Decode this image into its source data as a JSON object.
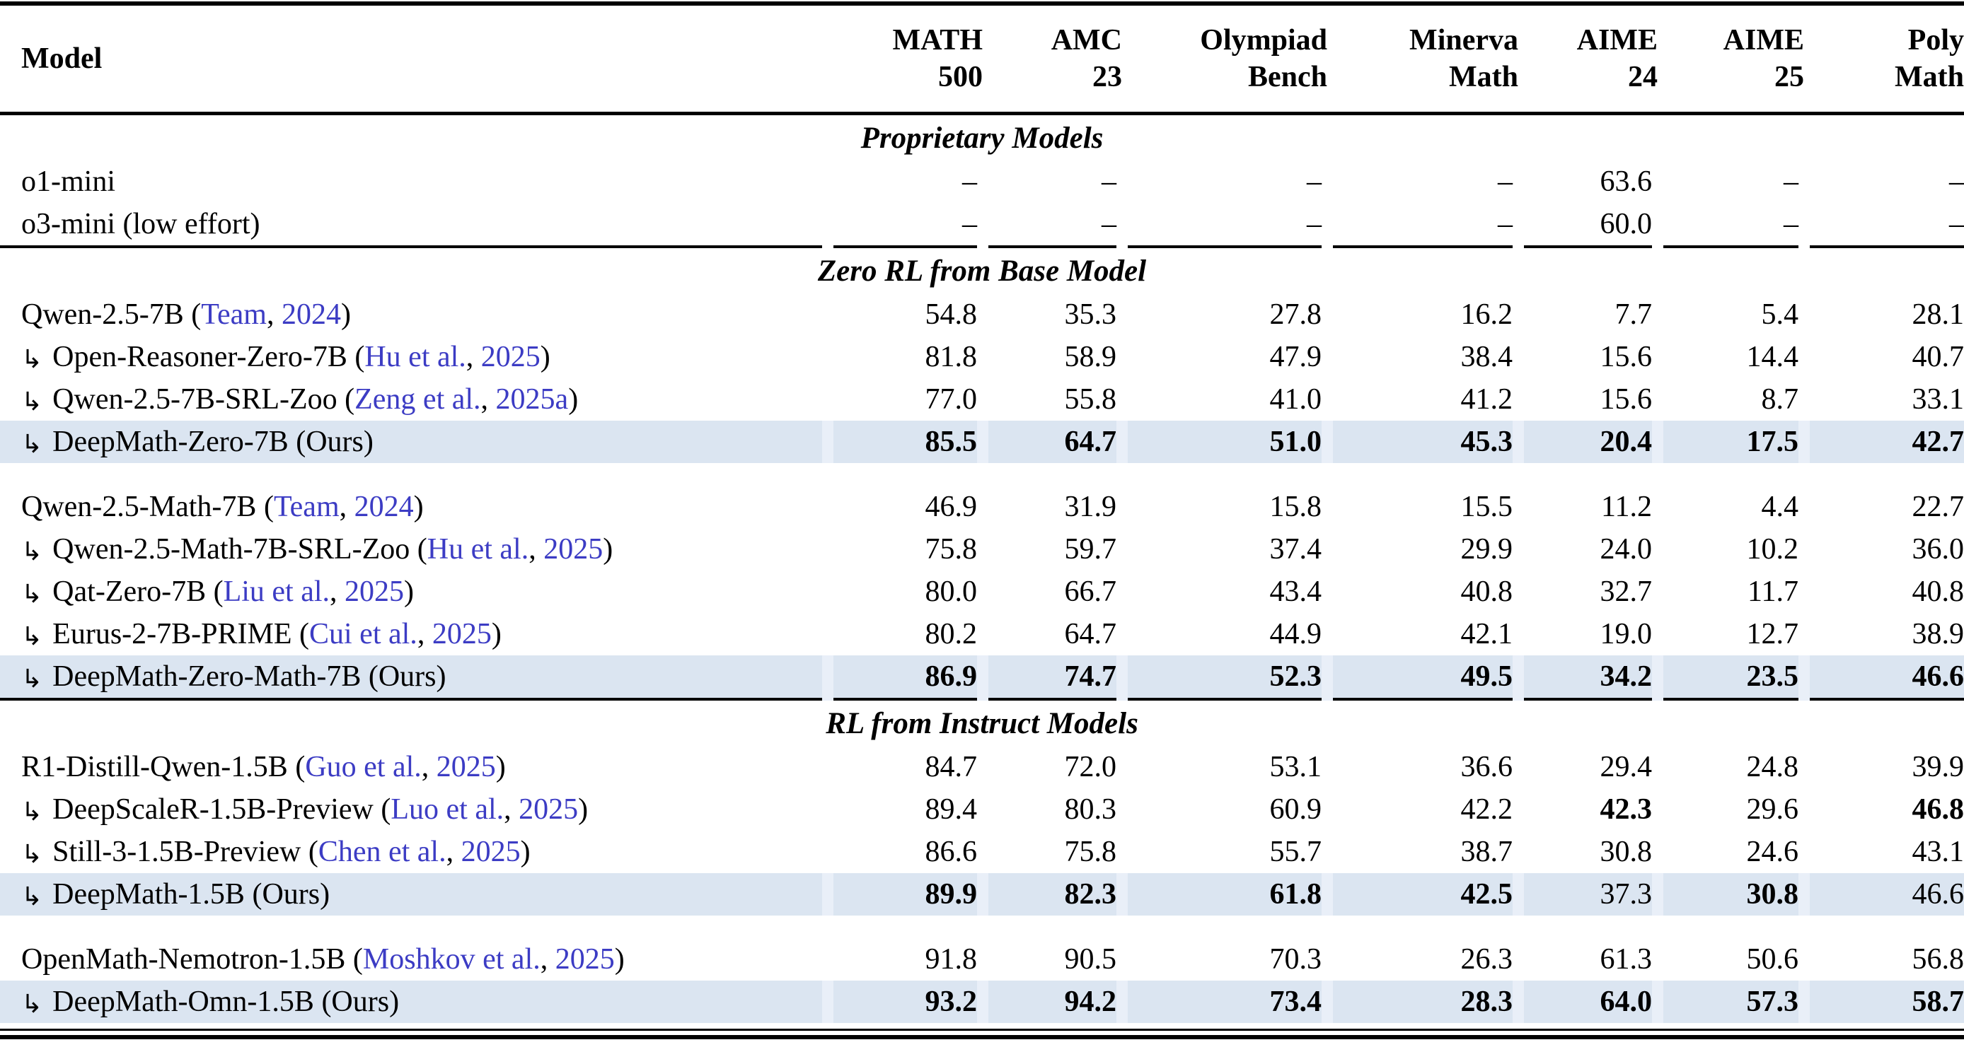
{
  "colors": {
    "link_blue": "#3c3cc4",
    "highlight_row": "#dbe5f1",
    "highlight_gap": "#e9eff8",
    "rule_black": "#000000"
  },
  "table": {
    "model_header": "Model",
    "columns": [
      {
        "id": "math500",
        "line1": "MATH",
        "line2": "500"
      },
      {
        "id": "amc23",
        "line1": "AMC",
        "line2": "23"
      },
      {
        "id": "olympiadbench",
        "line1": "Olympiad",
        "line2": "Bench"
      },
      {
        "id": "minervamath",
        "line1": "Minerva",
        "line2": "Math"
      },
      {
        "id": "aime24",
        "line1": "AIME",
        "line2": "24"
      },
      {
        "id": "aime25",
        "line1": "AIME",
        "line2": "25"
      },
      {
        "id": "polymath",
        "line1": "Poly",
        "line2": "Math"
      }
    ],
    "sections": [
      {
        "header": "Proprietary Models",
        "groups": [
          {
            "rows": [
              {
                "name": "o1-mini",
                "arrow": false,
                "ours": false,
                "values": [
                  "–",
                  "–",
                  "–",
                  "–",
                  "63.6",
                  "–",
                  "–"
                ],
                "bold": [
                  false,
                  false,
                  false,
                  false,
                  false,
                  false,
                  false
                ]
              },
              {
                "name": "o3-mini (low effort)",
                "arrow": false,
                "ours": false,
                "values": [
                  "–",
                  "–",
                  "–",
                  "–",
                  "60.0",
                  "–",
                  "–"
                ],
                "bold": [
                  false,
                  false,
                  false,
                  false,
                  false,
                  false,
                  false
                ]
              }
            ]
          }
        ]
      },
      {
        "header": "Zero RL from Base Model",
        "groups": [
          {
            "rows": [
              {
                "name": "Qwen-2.5-7B",
                "arrow": false,
                "ours": false,
                "cite_author": "Team",
                "cite_year": "2024",
                "values": [
                  "54.8",
                  "35.3",
                  "27.8",
                  "16.2",
                  "7.7",
                  "5.4",
                  "28.1"
                ],
                "bold": [
                  false,
                  false,
                  false,
                  false,
                  false,
                  false,
                  false
                ]
              },
              {
                "name": "Open-Reasoner-Zero-7B",
                "arrow": true,
                "ours": false,
                "cite_author": "Hu et al.",
                "cite_year": "2025",
                "values": [
                  "81.8",
                  "58.9",
                  "47.9",
                  "38.4",
                  "15.6",
                  "14.4",
                  "40.7"
                ],
                "bold": [
                  false,
                  false,
                  false,
                  false,
                  false,
                  false,
                  false
                ]
              },
              {
                "name": "Qwen-2.5-7B-SRL-Zoo",
                "arrow": true,
                "ours": false,
                "cite_author": "Zeng et al.",
                "cite_year": "2025a",
                "values": [
                  "77.0",
                  "55.8",
                  "41.0",
                  "41.2",
                  "15.6",
                  "8.7",
                  "33.1"
                ],
                "bold": [
                  false,
                  false,
                  false,
                  false,
                  false,
                  false,
                  false
                ]
              },
              {
                "name": "DeepMath-Zero-7B",
                "arrow": true,
                "ours": true,
                "suffix": "Ours",
                "values": [
                  "85.5",
                  "64.7",
                  "51.0",
                  "45.3",
                  "20.4",
                  "17.5",
                  "42.7"
                ],
                "bold": [
                  true,
                  true,
                  true,
                  true,
                  true,
                  true,
                  true
                ]
              }
            ]
          },
          {
            "rows": [
              {
                "name": "Qwen-2.5-Math-7B",
                "arrow": false,
                "ours": false,
                "cite_author": "Team",
                "cite_year": "2024",
                "values": [
                  "46.9",
                  "31.9",
                  "15.8",
                  "15.5",
                  "11.2",
                  "4.4",
                  "22.7"
                ],
                "bold": [
                  false,
                  false,
                  false,
                  false,
                  false,
                  false,
                  false
                ]
              },
              {
                "name": "Qwen-2.5-Math-7B-SRL-Zoo",
                "arrow": true,
                "ours": false,
                "cite_author": "Hu et al.",
                "cite_year": "2025",
                "values": [
                  "75.8",
                  "59.7",
                  "37.4",
                  "29.9",
                  "24.0",
                  "10.2",
                  "36.0"
                ],
                "bold": [
                  false,
                  false,
                  false,
                  false,
                  false,
                  false,
                  false
                ]
              },
              {
                "name": "Qat-Zero-7B",
                "arrow": true,
                "ours": false,
                "cite_author": "Liu et al.",
                "cite_year": "2025",
                "values": [
                  "80.0",
                  "66.7",
                  "43.4",
                  "40.8",
                  "32.7",
                  "11.7",
                  "40.8"
                ],
                "bold": [
                  false,
                  false,
                  false,
                  false,
                  false,
                  false,
                  false
                ]
              },
              {
                "name": "Eurus-2-7B-PRIME",
                "arrow": true,
                "ours": false,
                "cite_author": "Cui et al.",
                "cite_year": "2025",
                "values": [
                  "80.2",
                  "64.7",
                  "44.9",
                  "42.1",
                  "19.0",
                  "12.7",
                  "38.9"
                ],
                "bold": [
                  false,
                  false,
                  false,
                  false,
                  false,
                  false,
                  false
                ]
              },
              {
                "name": "DeepMath-Zero-Math-7B",
                "arrow": true,
                "ours": true,
                "suffix": "Ours",
                "values": [
                  "86.9",
                  "74.7",
                  "52.3",
                  "49.5",
                  "34.2",
                  "23.5",
                  "46.6"
                ],
                "bold": [
                  true,
                  true,
                  true,
                  true,
                  true,
                  true,
                  true
                ]
              }
            ]
          }
        ]
      },
      {
        "header": "RL from Instruct Models",
        "groups": [
          {
            "rows": [
              {
                "name": "R1-Distill-Qwen-1.5B",
                "arrow": false,
                "ours": false,
                "cite_author": "Guo et al.",
                "cite_year": "2025",
                "values": [
                  "84.7",
                  "72.0",
                  "53.1",
                  "36.6",
                  "29.4",
                  "24.8",
                  "39.9"
                ],
                "bold": [
                  false,
                  false,
                  false,
                  false,
                  false,
                  false,
                  false
                ]
              },
              {
                "name": "DeepScaleR-1.5B-Preview",
                "arrow": true,
                "ours": false,
                "cite_author": "Luo et al.",
                "cite_year": "2025",
                "values": [
                  "89.4",
                  "80.3",
                  "60.9",
                  "42.2",
                  "42.3",
                  "29.6",
                  "46.8"
                ],
                "bold": [
                  false,
                  false,
                  false,
                  false,
                  true,
                  false,
                  true
                ]
              },
              {
                "name": "Still-3-1.5B-Preview",
                "arrow": true,
                "ours": false,
                "cite_author": "Chen et al.",
                "cite_year": "2025",
                "values": [
                  "86.6",
                  "75.8",
                  "55.7",
                  "38.7",
                  "30.8",
                  "24.6",
                  "43.1"
                ],
                "bold": [
                  false,
                  false,
                  false,
                  false,
                  false,
                  false,
                  false
                ]
              },
              {
                "name": "DeepMath-1.5B",
                "arrow": true,
                "ours": true,
                "suffix": "Ours",
                "values": [
                  "89.9",
                  "82.3",
                  "61.8",
                  "42.5",
                  "37.3",
                  "30.8",
                  "46.6"
                ],
                "bold": [
                  true,
                  true,
                  true,
                  true,
                  false,
                  true,
                  false
                ]
              }
            ]
          },
          {
            "rows": [
              {
                "name": "OpenMath-Nemotron-1.5B",
                "arrow": false,
                "ours": false,
                "cite_author": "Moshkov et al.",
                "cite_year": "2025",
                "values": [
                  "91.8",
                  "90.5",
                  "70.3",
                  "26.3",
                  "61.3",
                  "50.6",
                  "56.8"
                ],
                "bold": [
                  false,
                  false,
                  false,
                  false,
                  false,
                  false,
                  false
                ]
              },
              {
                "name": "DeepMath-Omn-1.5B",
                "arrow": true,
                "ours": true,
                "suffix": "Ours",
                "values": [
                  "93.2",
                  "94.2",
                  "73.4",
                  "28.3",
                  "64.0",
                  "57.3",
                  "58.7"
                ],
                "bold": [
                  true,
                  true,
                  true,
                  true,
                  true,
                  true,
                  true
                ]
              }
            ]
          }
        ]
      }
    ]
  }
}
